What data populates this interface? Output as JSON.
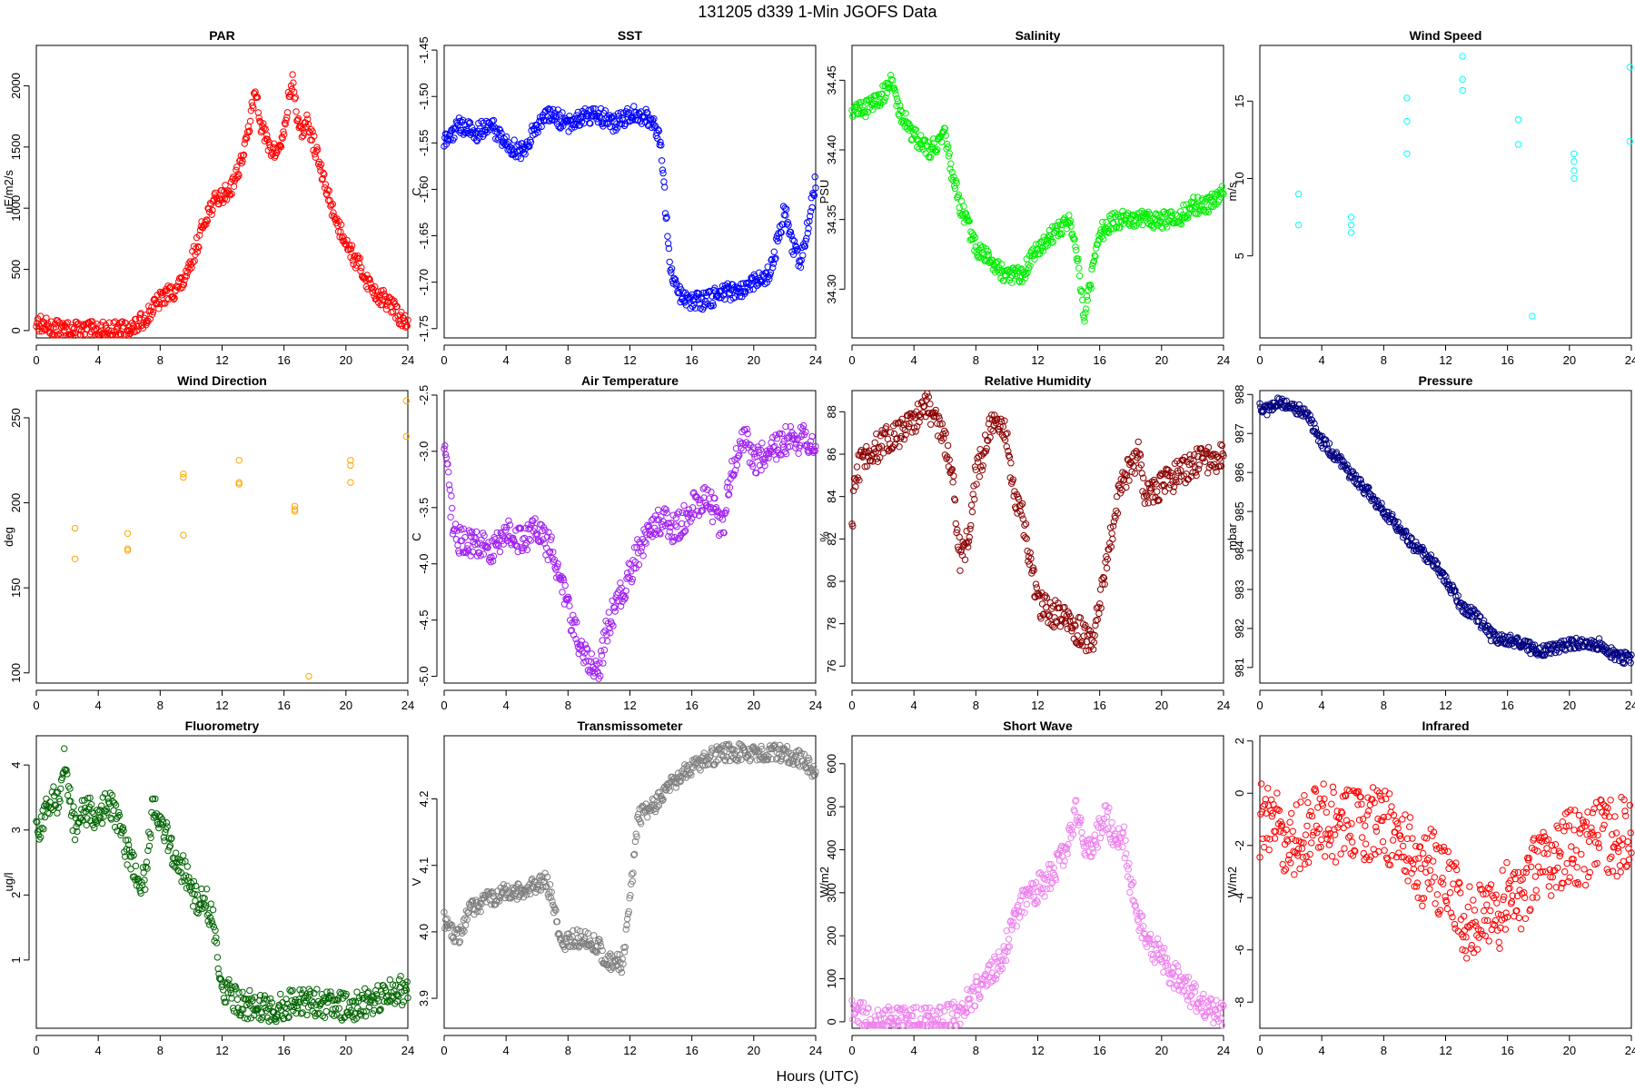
{
  "figure": {
    "title": "131205    d339    1-Min   JGOFS Data",
    "xlabel": "Hours (UTC)"
  },
  "chart_data": [
    {
      "type": "scatter",
      "title": "PAR",
      "ylabel": "uE/m2/s",
      "color": "#ff0000",
      "xlim": [
        0,
        24
      ],
      "ylim": [
        -60,
        2330
      ],
      "xticks": [
        "0",
        "4",
        "8",
        "12",
        "16",
        "20",
        "24"
      ],
      "yticks": [
        "0",
        "500",
        "1000",
        "1500",
        "2000"
      ],
      "x": [
        0,
        0.5,
        1,
        1.5,
        2,
        3,
        4,
        5,
        6,
        6.5,
        7,
        7.5,
        8,
        8.5,
        9,
        9.3,
        9.7,
        10,
        10.5,
        11,
        11.5,
        12,
        12.5,
        13,
        13.5,
        14,
        14.2,
        14.5,
        15,
        15.5,
        16,
        16.3,
        16.6,
        16.8,
        17,
        17.5,
        18,
        18.5,
        19,
        19.5,
        20,
        20.5,
        21,
        21.5,
        22,
        22.5,
        23,
        23.5,
        24
      ],
      "y": [
        70,
        40,
        20,
        10,
        5,
        3,
        2,
        3,
        10,
        40,
        100,
        180,
        250,
        300,
        330,
        380,
        420,
        550,
        750,
        950,
        1050,
        1100,
        1150,
        1300,
        1500,
        1850,
        1950,
        1700,
        1500,
        1450,
        1600,
        1900,
        2050,
        1800,
        1600,
        1700,
        1500,
        1250,
        1050,
        850,
        750,
        600,
        500,
        380,
        300,
        250,
        200,
        100,
        50
      ]
    },
    {
      "type": "scatter",
      "title": "SST",
      "ylabel": "C",
      "color": "#0000ff",
      "xlim": [
        0,
        24
      ],
      "ylim": [
        -1.76,
        -1.445
      ],
      "xticks": [
        "0",
        "4",
        "8",
        "12",
        "16",
        "20",
        "24"
      ],
      "yticks": [
        "-1.75",
        "-1.70",
        "-1.65",
        "-1.60",
        "-1.55",
        "-1.50",
        "-1.45"
      ],
      "x": [
        0,
        1,
        2,
        3,
        4,
        5,
        6,
        7,
        8,
        9,
        10,
        11,
        12,
        13,
        13.5,
        14,
        14.3,
        14.6,
        15,
        16,
        17,
        18,
        19,
        20,
        21,
        21.5,
        22,
        22.5,
        23,
        23.5,
        24
      ],
      "y": [
        -1.55,
        -1.53,
        -1.54,
        -1.53,
        -1.55,
        -1.56,
        -1.53,
        -1.52,
        -1.53,
        -1.52,
        -1.52,
        -1.53,
        -1.52,
        -1.52,
        -1.53,
        -1.55,
        -1.62,
        -1.68,
        -1.71,
        -1.72,
        -1.72,
        -1.71,
        -1.71,
        -1.7,
        -1.69,
        -1.66,
        -1.62,
        -1.66,
        -1.68,
        -1.64,
        -1.59
      ]
    },
    {
      "type": "scatter",
      "title": "Salinity",
      "ylabel": "PSU",
      "color": "#00ee00",
      "xlim": [
        0,
        24
      ],
      "ylim": [
        34.265,
        34.475
      ],
      "xticks": [
        "0",
        "4",
        "8",
        "12",
        "16",
        "20",
        "24"
      ],
      "yticks": [
        "34.30",
        "34.35",
        "34.40",
        "34.45"
      ],
      "x": [
        0,
        1,
        2,
        2.5,
        3,
        4,
        5,
        6,
        6.5,
        7,
        8,
        9,
        10,
        11,
        11.5,
        12,
        13,
        14,
        14.5,
        15,
        16,
        17,
        18,
        19,
        20,
        21,
        22,
        23,
        24
      ],
      "y": [
        34.43,
        34.43,
        34.44,
        34.45,
        34.43,
        34.41,
        34.4,
        34.41,
        34.38,
        34.36,
        34.33,
        34.32,
        34.31,
        34.31,
        34.32,
        34.33,
        34.34,
        34.35,
        34.33,
        34.28,
        34.34,
        34.35,
        34.35,
        34.35,
        34.35,
        34.35,
        34.36,
        34.36,
        34.37
      ]
    },
    {
      "type": "scatter",
      "title": "Wind Speed",
      "ylabel": "m/s",
      "color": "#00ffff",
      "xlim": [
        0,
        24
      ],
      "ylim": [
        -0.3,
        18.6
      ],
      "xticks": [
        "0",
        "4",
        "8",
        "12",
        "16",
        "20",
        "24"
      ],
      "yticks": [
        "5",
        "10",
        "15"
      ],
      "x": [
        2.5,
        2.5,
        5.9,
        5.9,
        5.9,
        9.5,
        9.5,
        9.5,
        13.1,
        13.1,
        13.1,
        16.7,
        16.7,
        16.7,
        17.6,
        20.3,
        20.3,
        20.3,
        20.3,
        23.9,
        23.9
      ],
      "y": [
        9.0,
        7.0,
        7.5,
        7.0,
        6.5,
        15.2,
        13.7,
        11.6,
        17.9,
        16.4,
        15.7,
        13.8,
        13.8,
        12.2,
        1.1,
        11.6,
        11.1,
        10.5,
        10.0,
        17.2,
        12.4
      ]
    },
    {
      "type": "scatter",
      "title": "Wind Direction",
      "ylabel": "deg",
      "color": "#ffa500",
      "xlim": [
        0,
        24
      ],
      "ylim": [
        94,
        266
      ],
      "xticks": [
        "0",
        "4",
        "8",
        "12",
        "16",
        "20",
        "24"
      ],
      "yticks": [
        "100",
        "150",
        "200",
        "250"
      ],
      "x": [
        2.5,
        2.5,
        5.9,
        5.9,
        5.9,
        9.5,
        9.5,
        9.5,
        13.1,
        13.1,
        13.1,
        16.7,
        16.7,
        16.7,
        17.6,
        20.3,
        20.3,
        20.3,
        23.9,
        23.9
      ],
      "y": [
        185,
        167,
        182,
        173,
        172,
        217,
        215,
        181,
        225,
        212,
        211,
        198,
        196,
        195,
        98,
        225,
        222,
        212,
        260,
        239
      ]
    },
    {
      "type": "scatter",
      "title": "Air Temperature",
      "ylabel": "C",
      "color": "#a020f0",
      "xlim": [
        0,
        24
      ],
      "ylim": [
        -5.06,
        -2.46
      ],
      "xticks": [
        "0",
        "4",
        "8",
        "12",
        "16",
        "20",
        "24"
      ],
      "yticks": [
        "-5.0",
        "-4.5",
        "-4.0",
        "-3.5",
        "-3.0",
        "-2.5"
      ],
      "x": [
        0,
        0.3,
        0.6,
        1,
        2,
        3,
        4,
        5,
        6,
        7,
        7.5,
        8,
        8.5,
        9,
        9.5,
        10,
        10.5,
        11,
        12,
        12.5,
        13,
        14,
        15,
        16,
        17,
        18,
        18.5,
        19,
        19.5,
        20,
        21,
        22,
        23,
        24
      ],
      "y": [
        -3.0,
        -3.3,
        -3.7,
        -3.8,
        -3.8,
        -3.9,
        -3.7,
        -3.8,
        -3.7,
        -3.9,
        -4.1,
        -4.4,
        -4.6,
        -4.8,
        -4.9,
        -4.95,
        -4.6,
        -4.4,
        -4.1,
        -3.9,
        -3.8,
        -3.6,
        -3.7,
        -3.5,
        -3.4,
        -3.7,
        -3.2,
        -3.0,
        -2.9,
        -3.1,
        -3.0,
        -2.9,
        -2.9,
        -2.9
      ]
    },
    {
      "type": "scatter",
      "title": "Relative Humidity",
      "ylabel": "%",
      "color": "#8b0000",
      "xlim": [
        0,
        24
      ],
      "ylim": [
        75.2,
        89.0
      ],
      "xticks": [
        "0",
        "4",
        "8",
        "12",
        "16",
        "20",
        "24"
      ],
      "yticks": [
        "76",
        "78",
        "80",
        "82",
        "84",
        "86",
        "88"
      ],
      "x": [
        0,
        0.2,
        0.5,
        1,
        2,
        3,
        4,
        4.7,
        5.5,
        6,
        6.5,
        7,
        7.5,
        8,
        8.5,
        9,
        9.5,
        10,
        10.5,
        11,
        11.5,
        12,
        13,
        14,
        15,
        15.5,
        16,
        16.5,
        17,
        17.5,
        18,
        18.5,
        19,
        20,
        21,
        22,
        23,
        24
      ],
      "y": [
        82.5,
        85,
        85.5,
        86,
        86.5,
        87,
        87.5,
        88.5,
        87.5,
        86.5,
        85,
        81,
        82,
        85,
        86,
        87.5,
        87.8,
        86.5,
        84,
        83,
        81,
        79,
        78.5,
        78,
        77.5,
        77,
        79,
        81,
        83.5,
        84.5,
        85.5,
        86,
        84,
        84.5,
        85,
        85.5,
        85.8,
        85.8
      ]
    },
    {
      "type": "scatter",
      "title": "Pressure",
      "ylabel": "mbar",
      "color": "#000080",
      "xlim": [
        0,
        24
      ],
      "ylim": [
        980.6,
        988.1
      ],
      "xticks": [
        "0",
        "4",
        "8",
        "12",
        "16",
        "20",
        "24"
      ],
      "yticks": [
        "981",
        "982",
        "983",
        "984",
        "985",
        "986",
        "987",
        "988"
      ],
      "x": [
        0,
        0.5,
        1,
        2,
        3,
        4,
        5,
        6,
        7,
        8,
        9,
        10,
        11,
        12,
        13,
        14,
        15,
        16,
        17,
        18,
        19,
        20,
        21,
        22,
        23,
        24
      ],
      "y": [
        987.7,
        987.6,
        987.8,
        987.7,
        987.5,
        986.8,
        986.4,
        985.9,
        985.5,
        985.0,
        984.6,
        984.1,
        983.8,
        983.3,
        982.6,
        982.3,
        981.8,
        981.7,
        981.6,
        981.4,
        981.5,
        981.6,
        981.6,
        981.6,
        981.3,
        981.2
      ]
    },
    {
      "type": "scatter",
      "title": "Fluorometry",
      "ylabel": "ug/l",
      "color": "#006400",
      "xlim": [
        0,
        24
      ],
      "ylim": [
        -0.05,
        4.45
      ],
      "xticks": [
        "0",
        "4",
        "8",
        "12",
        "16",
        "20",
        "24"
      ],
      "yticks": [
        "1",
        "2",
        "3",
        "4"
      ],
      "x": [
        0,
        0.5,
        1,
        1.5,
        1.8,
        2,
        2.5,
        3,
        3.5,
        4,
        4.5,
        5,
        5.5,
        6,
        6.5,
        7,
        7.5,
        8,
        8.5,
        9,
        9.5,
        10,
        10.5,
        11,
        11.5,
        12,
        13,
        14,
        15,
        16,
        17,
        18,
        19,
        20,
        21,
        22,
        23,
        24
      ],
      "y": [
        3.0,
        3.2,
        3.5,
        3.4,
        4.2,
        3.7,
        3.0,
        3.3,
        3.3,
        3.2,
        3.4,
        3.3,
        2.9,
        2.6,
        2.3,
        2.2,
        3.3,
        3.2,
        2.9,
        2.5,
        2.4,
        2.1,
        1.9,
        1.9,
        1.5,
        0.6,
        0.35,
        0.3,
        0.25,
        0.28,
        0.4,
        0.35,
        0.3,
        0.28,
        0.32,
        0.4,
        0.5,
        0.55
      ]
    },
    {
      "type": "scatter",
      "title": "Transmissometer",
      "ylabel": "V",
      "color": "#808080",
      "xlim": [
        0,
        24
      ],
      "ylim": [
        3.855,
        4.295
      ],
      "xticks": [
        "0",
        "4",
        "8",
        "12",
        "16",
        "20",
        "24"
      ],
      "yticks": [
        "3.9",
        "4.0",
        "4.1",
        "4.2"
      ],
      "x": [
        0,
        0.5,
        1,
        1.5,
        2,
        3,
        4,
        5,
        6,
        6.5,
        7,
        7.5,
        8,
        9,
        10,
        10.5,
        11,
        11.5,
        12,
        12.5,
        13,
        14,
        15,
        16,
        17,
        18,
        19,
        20,
        21,
        22,
        23,
        24
      ],
      "y": [
        4.02,
        4.0,
        3.99,
        4.03,
        4.04,
        4.05,
        4.06,
        4.06,
        4.07,
        4.08,
        4.05,
        3.98,
        3.99,
        3.99,
        3.98,
        3.95,
        3.96,
        3.95,
        4.05,
        4.17,
        4.18,
        4.2,
        4.23,
        4.25,
        4.26,
        4.27,
        4.27,
        4.27,
        4.27,
        4.27,
        4.26,
        4.24
      ]
    },
    {
      "type": "scatter",
      "title": "Short Wave",
      "ylabel": "W/m2",
      "color": "#ee82ee",
      "xlim": [
        0,
        24
      ],
      "ylim": [
        -15,
        665
      ],
      "xticks": [
        "0",
        "4",
        "8",
        "12",
        "16",
        "20",
        "24"
      ],
      "yticks": [
        "0",
        "100",
        "200",
        "300",
        "400",
        "500",
        "600"
      ],
      "x": [
        0,
        0.5,
        1,
        2,
        3,
        4,
        5,
        6,
        6.5,
        7,
        7.5,
        8,
        8.5,
        9,
        9.5,
        10,
        10.5,
        11,
        11.5,
        12,
        12.5,
        13,
        13.5,
        14,
        14.5,
        15,
        15.5,
        16,
        16.5,
        17,
        17.5,
        18,
        18.5,
        19,
        19.5,
        20,
        20.5,
        21,
        21.5,
        22,
        22.5,
        23,
        23.5,
        24
      ],
      "y": [
        20,
        15,
        8,
        3,
        2,
        2,
        2,
        5,
        12,
        25,
        45,
        70,
        95,
        110,
        140,
        180,
        240,
        280,
        300,
        310,
        320,
        350,
        380,
        420,
        500,
        400,
        390,
        450,
        480,
        420,
        440,
        320,
        250,
        200,
        170,
        150,
        120,
        100,
        80,
        60,
        40,
        30,
        20,
        15
      ]
    },
    {
      "type": "scatter",
      "title": "Infrared",
      "ylabel": "W/m2",
      "color": "#ff0000",
      "xlim": [
        0,
        24
      ],
      "ylim": [
        -9.0,
        2.2
      ],
      "xticks": [
        "0",
        "4",
        "8",
        "12",
        "16",
        "20",
        "24"
      ],
      "yticks": [
        "-8",
        "-6",
        "-4",
        "-2",
        "0",
        "2"
      ],
      "x": [
        0,
        1,
        2,
        3,
        4,
        5,
        6,
        7,
        8,
        9,
        10,
        10.5,
        11,
        11.5,
        12,
        12.5,
        13,
        13.5,
        14,
        14.5,
        15,
        15.5,
        16,
        16.5,
        17,
        17.5,
        18,
        18.5,
        19,
        20,
        21,
        22,
        23,
        24
      ],
      "y": [
        -1.0,
        -1.2,
        -1.8,
        -1.5,
        -1.0,
        -1.3,
        -1.2,
        -1.1,
        -1.3,
        -1.5,
        -2.5,
        -3.0,
        -2.5,
        -3.2,
        -3.5,
        -3.8,
        -4.5,
        -5.0,
        -4.5,
        -5.2,
        -4.0,
        -4.8,
        -3.5,
        -3.8,
        -4.2,
        -3.0,
        -2.5,
        -2.8,
        -2.5,
        -2.0,
        -2.2,
        -1.5,
        -1.8,
        -1.2
      ]
    }
  ]
}
